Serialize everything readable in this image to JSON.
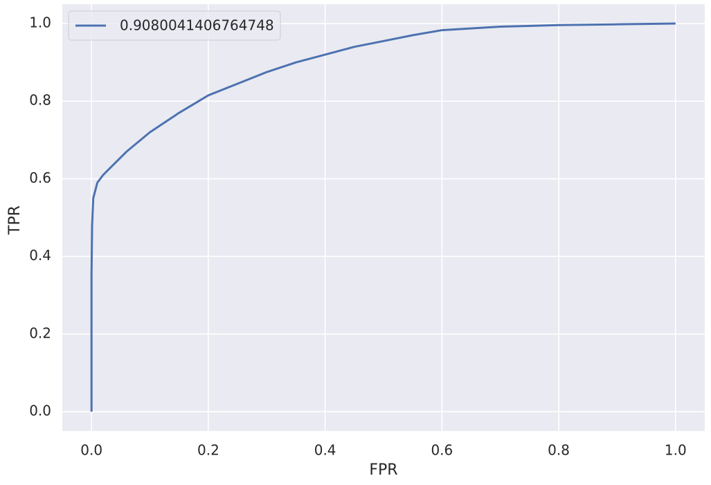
{
  "chart_data": {
    "type": "line",
    "xlabel": "FPR",
    "ylabel": "TPR",
    "x": [
      0,
      0,
      0.001,
      0.003,
      0.01,
      0.02,
      0.04,
      0.06,
      0.1,
      0.15,
      0.2,
      0.25,
      0.3,
      0.35,
      0.4,
      0.45,
      0.5,
      0.55,
      0.6,
      0.7,
      0.8,
      0.9,
      1.0
    ],
    "series": [
      {
        "name": "0.9080041406764748",
        "color": "#4c72b0",
        "values": [
          0,
          0.35,
          0.48,
          0.55,
          0.59,
          0.61,
          0.64,
          0.67,
          0.72,
          0.77,
          0.815,
          0.845,
          0.875,
          0.9,
          0.92,
          0.94,
          0.955,
          0.97,
          0.983,
          0.992,
          0.996,
          0.998,
          1.0
        ]
      }
    ],
    "xlim": [
      -0.05,
      1.05
    ],
    "ylim": [
      -0.05,
      1.05
    ],
    "xticks": [
      {
        "value": 0,
        "label": "0.0"
      },
      0.2,
      0.4,
      0.6,
      0.8,
      {
        "value": 1,
        "label": "1.0"
      }
    ],
    "yticks": [
      {
        "value": 0,
        "label": "0.0"
      },
      0.2,
      0.4,
      0.6,
      0.8,
      {
        "value": 1,
        "label": "1.0"
      }
    ],
    "grid": true,
    "legend": "upper-left"
  }
}
